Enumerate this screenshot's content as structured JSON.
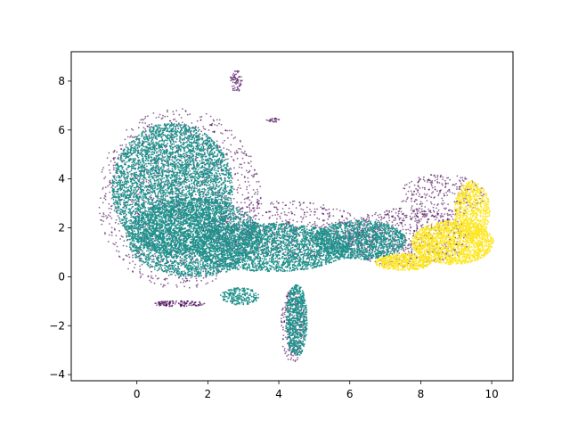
{
  "chart_data": {
    "type": "scatter",
    "title": "",
    "xlabel": "",
    "ylabel": "",
    "xlim": [
      -1.85,
      10.6
    ],
    "ylim": [
      -4.25,
      9.2
    ],
    "xticks": [
      0,
      2,
      4,
      6,
      8,
      10
    ],
    "yticks": [
      -4,
      -2,
      0,
      2,
      4,
      6,
      8
    ],
    "xtick_labels": [
      "0",
      "2",
      "4",
      "6",
      "8",
      "10"
    ],
    "ytick_labels": [
      "−4",
      "−2",
      "0",
      "2",
      "4",
      "6",
      "8"
    ],
    "grid": false,
    "legend": "none",
    "marker_size": "tiny",
    "series": [
      {
        "color": "#440154",
        "opacity": 0.6,
        "regions": [
          {
            "shape": "ellipse",
            "cx": 1.2,
            "cy": 3.2,
            "rx": 2.3,
            "ry": 3.7,
            "n": 1400
          },
          {
            "shape": "ellipse",
            "cx": 4.2,
            "cy": 1.9,
            "rx": 2.2,
            "ry": 1.2,
            "n": 600
          },
          {
            "shape": "ellipse",
            "cx": 7.6,
            "cy": 1.6,
            "rx": 1.8,
            "ry": 1.2,
            "n": 800
          },
          {
            "shape": "ellipse",
            "cx": 8.6,
            "cy": 3.3,
            "rx": 1.2,
            "ry": 0.9,
            "n": 300
          },
          {
            "shape": "ellipse",
            "cx": 1.2,
            "cy": -1.1,
            "rx": 0.75,
            "ry": 0.12,
            "n": 140
          },
          {
            "shape": "ellipse",
            "cx": 2.8,
            "cy": 8.0,
            "rx": 0.18,
            "ry": 0.45,
            "n": 70
          },
          {
            "shape": "ellipse",
            "cx": 3.85,
            "cy": 6.4,
            "rx": 0.2,
            "ry": 0.08,
            "n": 25
          },
          {
            "shape": "ellipse",
            "cx": 4.4,
            "cy": -2.0,
            "rx": 0.35,
            "ry": 1.5,
            "n": 220
          }
        ]
      },
      {
        "color": "#21918c",
        "opacity": 1,
        "regions": [
          {
            "shape": "ellipse",
            "cx": 1.0,
            "cy": 3.6,
            "rx": 1.7,
            "ry": 2.7,
            "n": 4500
          },
          {
            "shape": "ellipse",
            "cx": 1.6,
            "cy": 1.6,
            "rx": 1.9,
            "ry": 1.6,
            "n": 2500
          },
          {
            "shape": "ellipse",
            "cx": 3.8,
            "cy": 1.2,
            "rx": 2.2,
            "ry": 1.0,
            "n": 2500
          },
          {
            "shape": "ellipse",
            "cx": 6.3,
            "cy": 1.5,
            "rx": 1.3,
            "ry": 0.8,
            "n": 1300
          },
          {
            "shape": "ellipse",
            "cx": 4.5,
            "cy": -1.8,
            "rx": 0.3,
            "ry": 1.5,
            "n": 700
          },
          {
            "shape": "ellipse",
            "cx": 2.9,
            "cy": -0.8,
            "rx": 0.55,
            "ry": 0.35,
            "n": 200
          }
        ]
      },
      {
        "color": "#fde725",
        "opacity": 1,
        "regions": [
          {
            "shape": "ellipse",
            "cx": 8.9,
            "cy": 1.4,
            "rx": 1.15,
            "ry": 0.9,
            "n": 1600
          },
          {
            "shape": "ellipse",
            "cx": 9.45,
            "cy": 2.7,
            "rx": 0.5,
            "ry": 1.2,
            "n": 700
          },
          {
            "shape": "ellipse",
            "cx": 7.5,
            "cy": 0.6,
            "rx": 0.8,
            "ry": 0.35,
            "n": 500
          }
        ]
      }
    ]
  }
}
